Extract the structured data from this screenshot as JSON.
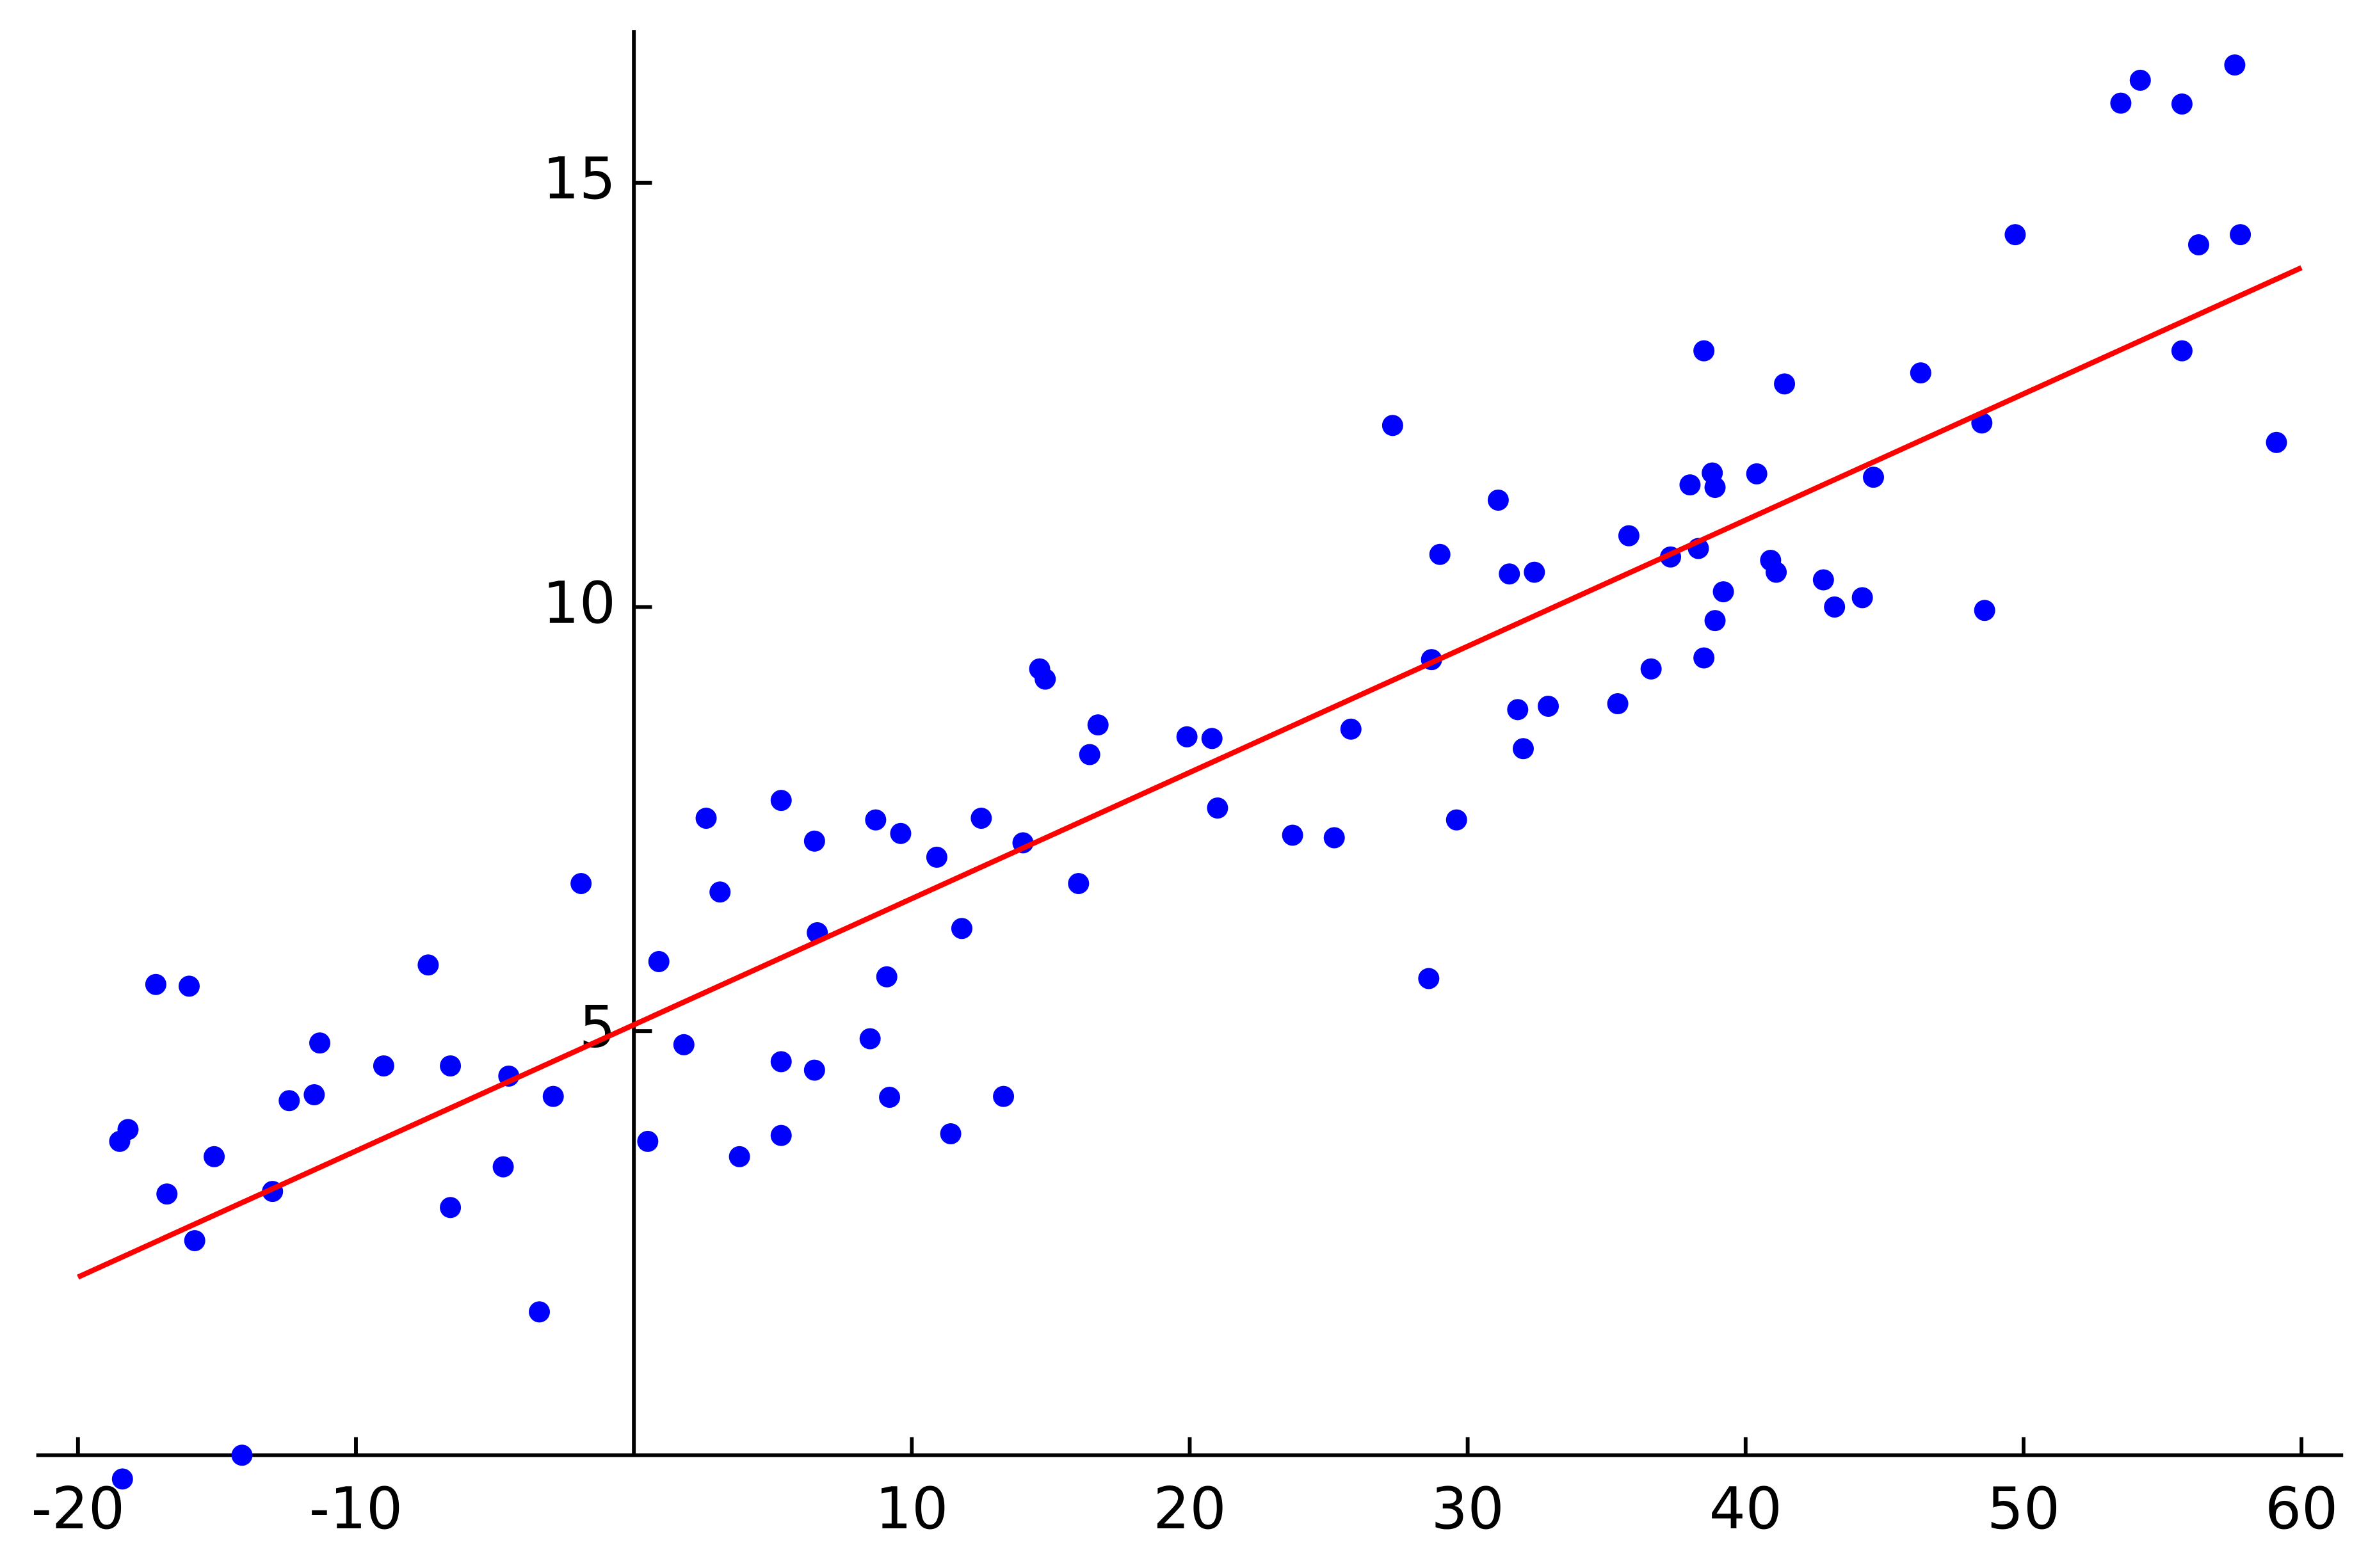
{
  "chart_data": {
    "type": "scatter",
    "xlim": [
      -21.5,
      61.5
    ],
    "ylim": [
      -0.5,
      16.8
    ],
    "xticks": [
      -20,
      -10,
      10,
      20,
      30,
      40,
      50,
      60
    ],
    "yticks": [
      5,
      10,
      15
    ],
    "series": [
      {
        "color": "#0000ff",
        "x": [
          -18.4,
          -14.1,
          -18.5,
          -18.2,
          -17.2,
          -16.0,
          -16.8,
          -15.8,
          -15.1,
          -13.0,
          -12.4,
          -11.5,
          -11.3,
          -9.0,
          -7.4,
          -6.6,
          -6.6,
          -4.7,
          -4.5,
          -3.4,
          -2.9,
          -1.9,
          0.5,
          0.9,
          1.8,
          2.6,
          3.1,
          3.8,
          5.3,
          5.3,
          5.3,
          6.5,
          6.6,
          6.5,
          8.5,
          8.7,
          9.1,
          9.2,
          9.6,
          10.9,
          11.4,
          11.8,
          12.5,
          13.3,
          14.0,
          14.6,
          14.8,
          16.0,
          16.4,
          16.7,
          19.9,
          20.8,
          21.0,
          23.7,
          25.2,
          25.8,
          27.3,
          28.6,
          28.7,
          29.0,
          29.6,
          31.1,
          31.5,
          32.4,
          31.8,
          32.0,
          32.9,
          35.4,
          35.8,
          36.6,
          37.3,
          38.0,
          38.3,
          38.5,
          38.8,
          38.9,
          38.5,
          38.9,
          39.2,
          40.4,
          40.9,
          41.1,
          41.4,
          42.8,
          43.2,
          44.2,
          44.6,
          46.3,
          48.5,
          48.6,
          49.7,
          53.5,
          54.2,
          55.7,
          55.7,
          56.3,
          57.6,
          57.8,
          59.1
        ],
        "values": [
          -0.28,
          0.0,
          3.7,
          3.84,
          5.55,
          5.53,
          3.08,
          2.53,
          3.52,
          3.11,
          4.18,
          4.25,
          4.86,
          4.59,
          5.78,
          4.59,
          2.92,
          3.4,
          4.47,
          1.69,
          4.23,
          6.74,
          3.7,
          5.82,
          4.84,
          7.51,
          6.64,
          3.52,
          7.72,
          4.64,
          3.77,
          7.24,
          6.16,
          4.54,
          4.91,
          7.49,
          5.64,
          4.22,
          7.33,
          7.05,
          3.79,
          6.21,
          7.51,
          4.23,
          7.22,
          9.27,
          9.15,
          6.74,
          8.26,
          8.61,
          8.47,
          8.45,
          7.63,
          7.31,
          7.28,
          8.56,
          12.14,
          5.62,
          9.38,
          10.62,
          7.49,
          11.26,
          10.39,
          10.41,
          8.79,
          8.33,
          8.83,
          8.86,
          10.84,
          9.27,
          10.59,
          11.44,
          10.69,
          13.02,
          11.58,
          11.41,
          9.4,
          9.84,
          10.18,
          11.57,
          10.55,
          10.41,
          12.63,
          10.32,
          10.0,
          10.11,
          11.53,
          12.76,
          12.17,
          9.96,
          14.39,
          15.94,
          16.21,
          15.93,
          13.02,
          14.27,
          16.39,
          14.39,
          11.94
        ]
      },
      {
        "type": "line",
        "color": "#ff0000",
        "x": [
          -20,
          60
        ],
        "values": [
          2.1,
          14.0
        ]
      }
    ]
  }
}
